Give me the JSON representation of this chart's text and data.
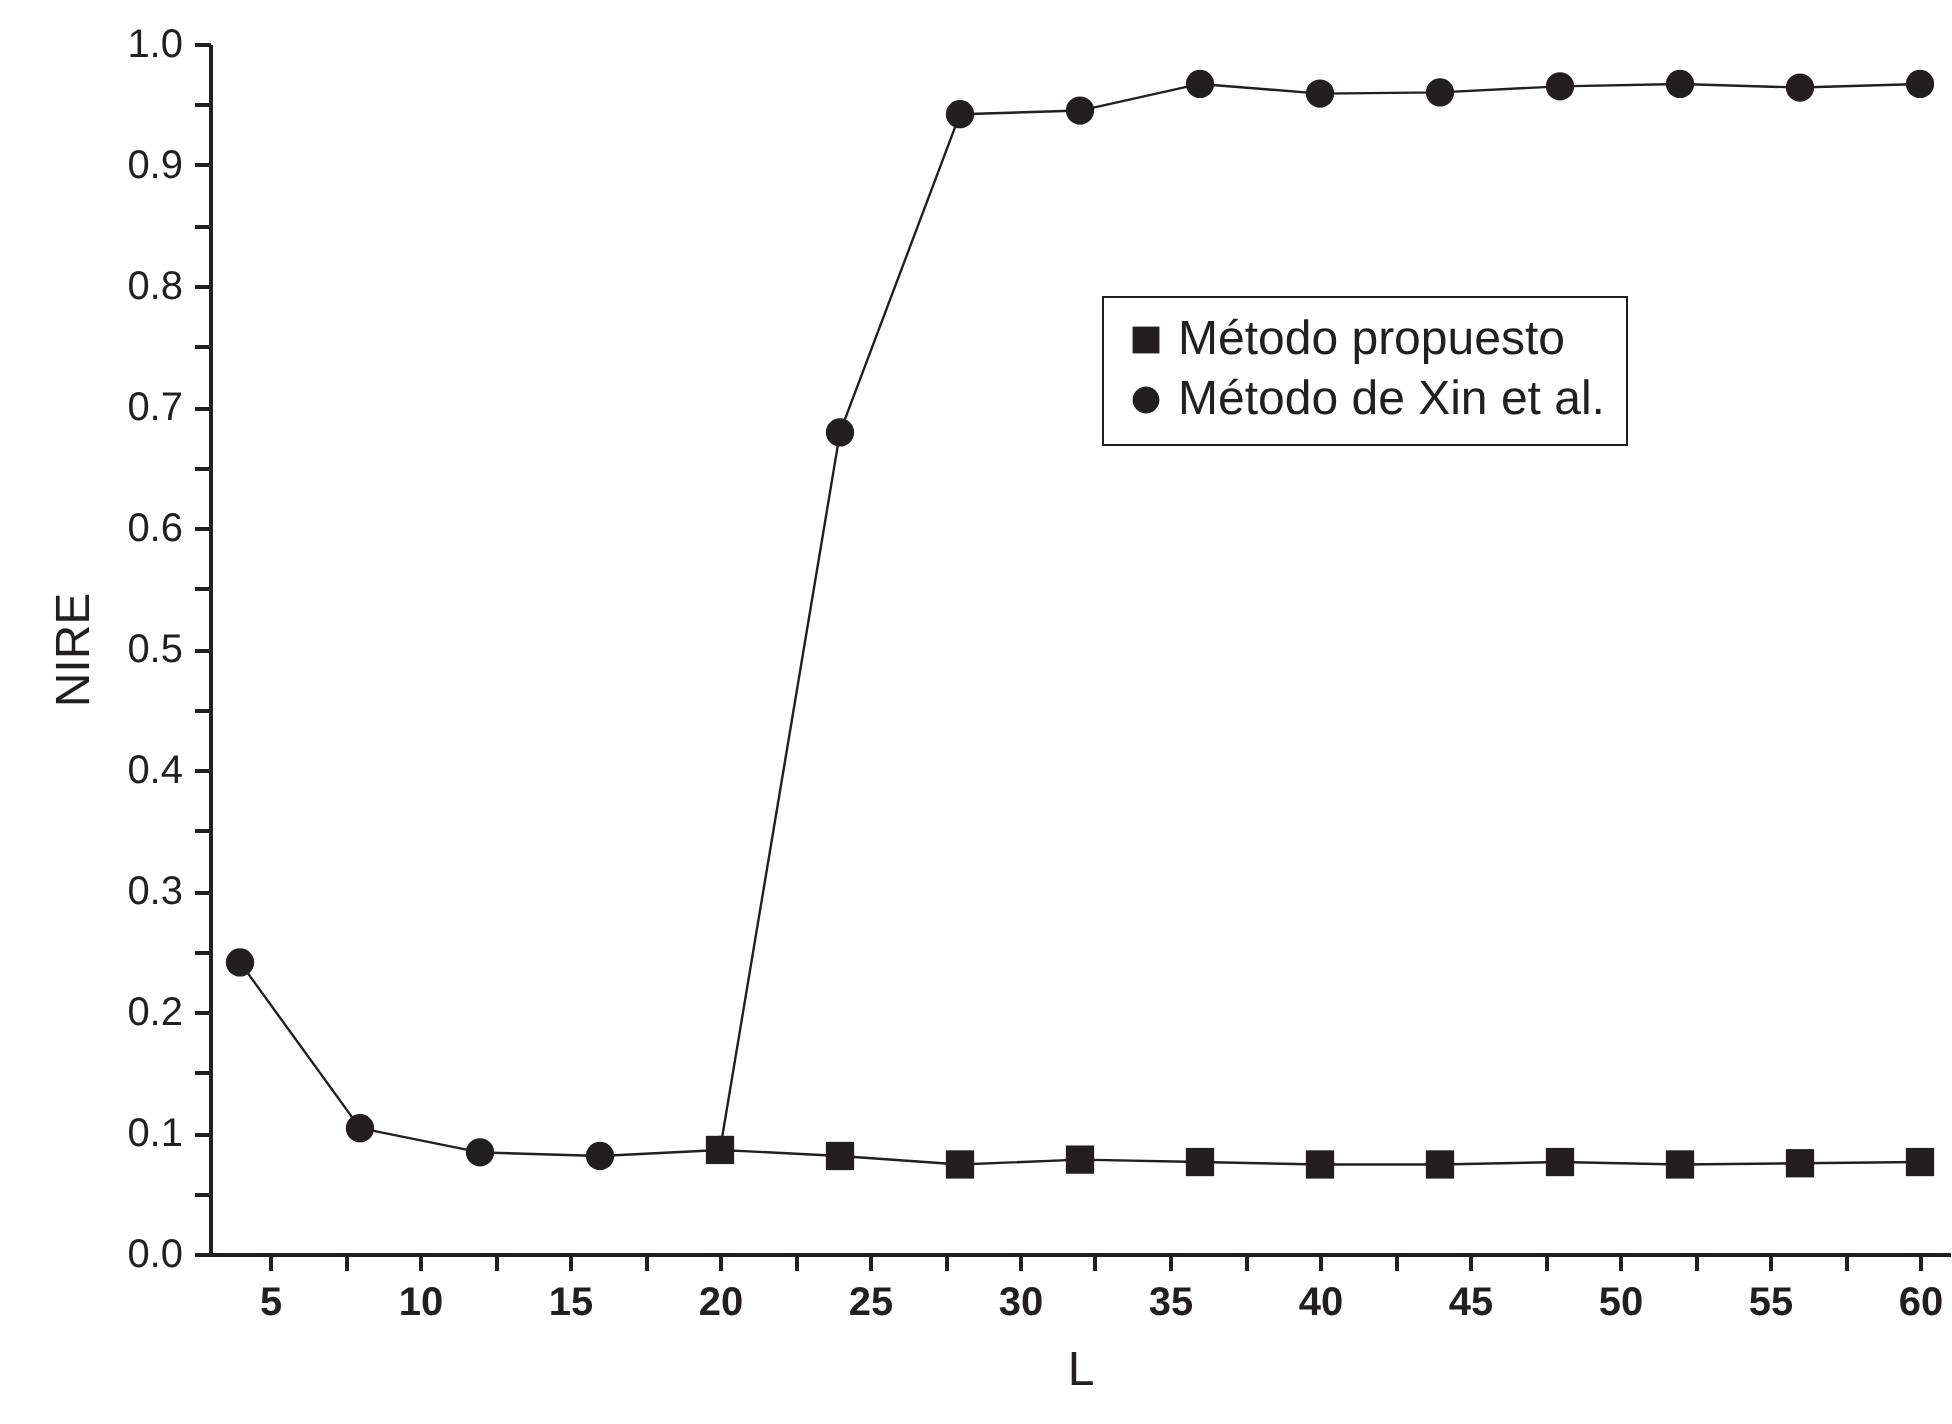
{
  "chart_data": {
    "type": "line",
    "xlabel": "L",
    "ylabel": "NIRE",
    "x": [
      4,
      8,
      12,
      16,
      20,
      24,
      28,
      32,
      36,
      40,
      44,
      48,
      52,
      56,
      60
    ],
    "series": [
      {
        "name": "Método propuesto",
        "color": "#231f20",
        "marker": "square",
        "values": [
          null,
          null,
          null,
          null,
          0.086,
          0.081,
          0.074,
          0.078,
          0.076,
          0.074,
          0.074,
          0.076,
          0.074,
          0.075,
          0.076
        ]
      },
      {
        "name": "Método de Xin et al.",
        "color": "#231f20",
        "marker": "circle",
        "values": [
          0.241,
          0.104,
          0.084,
          0.081,
          0.086,
          0.679,
          0.942,
          0.945,
          0.967,
          0.959,
          0.96,
          0.965,
          0.967,
          0.964,
          0.967
        ]
      }
    ],
    "xlim": [
      3,
      61
    ],
    "xticks": [
      5,
      {
        "value": 7.5,
        "label": null
      },
      10,
      {
        "value": 12.5,
        "label": null
      },
      15,
      {
        "value": 17.5,
        "label": null
      },
      20,
      {
        "value": 22.5,
        "label": null
      },
      25,
      {
        "value": 27.5,
        "label": null
      },
      30,
      {
        "value": 32.5,
        "label": null
      },
      35,
      {
        "value": 37.5,
        "label": null
      },
      40,
      {
        "value": 42.5,
        "label": null
      },
      45,
      {
        "value": 47.5,
        "label": null
      },
      50,
      {
        "value": 52.5,
        "label": null
      },
      55,
      {
        "value": 57.5,
        "label": null
      },
      60
    ],
    "ylim": [
      0,
      1
    ],
    "yticks": [
      {
        "value": 0,
        "label": "0.0"
      },
      {
        "value": 0.05,
        "label": null
      },
      {
        "value": 0.1,
        "label": "0.1"
      },
      {
        "value": 0.15,
        "label": null
      },
      {
        "value": 0.2,
        "label": "0.2"
      },
      {
        "value": 0.25,
        "label": null
      },
      {
        "value": 0.3,
        "label": "0.3"
      },
      {
        "value": 0.35,
        "label": null
      },
      {
        "value": 0.4,
        "label": "0.4"
      },
      {
        "value": 0.45,
        "label": null
      },
      {
        "value": 0.5,
        "label": "0.5"
      },
      {
        "value": 0.55,
        "label": null
      },
      {
        "value": 0.6,
        "label": "0.6"
      },
      {
        "value": 0.65,
        "label": null
      },
      {
        "value": 0.7,
        "label": "0.7"
      },
      {
        "value": 0.75,
        "label": null
      },
      {
        "value": 0.8,
        "label": "0.8"
      },
      {
        "value": 0.85,
        "label": null
      },
      {
        "value": 0.9,
        "label": "0.9"
      },
      {
        "value": 0.95,
        "label": null
      },
      {
        "value": 1,
        "label": "1.0"
      }
    ],
    "grid": false,
    "legend": "top right",
    "line_style": "solid"
  }
}
